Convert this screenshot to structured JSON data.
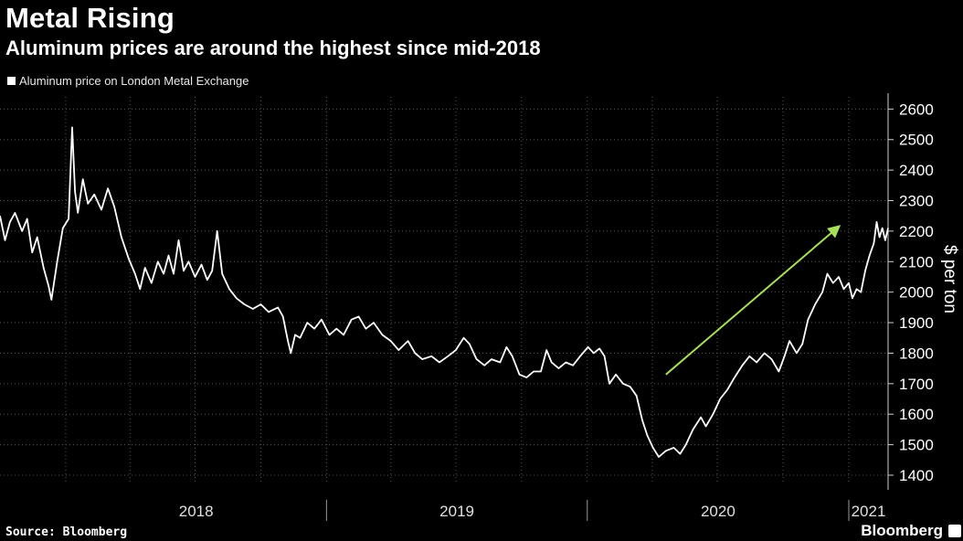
{
  "header": {
    "title": "Metal Rising",
    "subtitle": "Aluminum prices are around the highest since mid-2018"
  },
  "footer": {
    "source": "Source: Bloomberg",
    "brand": "Bloomberg"
  },
  "colors": {
    "background": "#000000",
    "line": "#ffffff",
    "annotation_arrow": "#a6e05a",
    "grid": "#555555"
  },
  "chart_data": {
    "type": "line",
    "title": "Metal Rising",
    "subtitle": "Aluminum prices are around the highest since mid-2018",
    "ylabel": "$ per ton",
    "y_axis_position": "right",
    "ylim": [
      1370,
      2640
    ],
    "yticks": [
      1400,
      1500,
      1600,
      1700,
      1800,
      1900,
      2000,
      2100,
      2200,
      2300,
      2400,
      2500,
      2600
    ],
    "xlim": [
      "2017-10-01",
      "2021-02-25"
    ],
    "x_tick_labels": [
      "2018",
      "2019",
      "2020",
      "2021"
    ],
    "grid": true,
    "legend": {
      "position": "top-left",
      "entries": [
        "Aluminum price on London Metal Exchange"
      ]
    },
    "series": [
      {
        "name": "Aluminum price on London Metal Exchange",
        "color": "#ffffff",
        "points": [
          [
            "2017-10-01",
            2250
          ],
          [
            "2017-10-08",
            2170
          ],
          [
            "2017-10-15",
            2230
          ],
          [
            "2017-10-22",
            2260
          ],
          [
            "2017-11-01",
            2200
          ],
          [
            "2017-11-08",
            2240
          ],
          [
            "2017-11-15",
            2130
          ],
          [
            "2017-11-22",
            2180
          ],
          [
            "2017-12-01",
            2080
          ],
          [
            "2017-12-08",
            2020
          ],
          [
            "2017-12-12",
            1975
          ],
          [
            "2017-12-20",
            2100
          ],
          [
            "2017-12-28",
            2210
          ],
          [
            "2018-01-05",
            2240
          ],
          [
            "2018-01-10",
            2540
          ],
          [
            "2018-01-14",
            2330
          ],
          [
            "2018-01-18",
            2260
          ],
          [
            "2018-01-25",
            2370
          ],
          [
            "2018-02-01",
            2290
          ],
          [
            "2018-02-10",
            2320
          ],
          [
            "2018-02-20",
            2270
          ],
          [
            "2018-03-01",
            2340
          ],
          [
            "2018-03-10",
            2280
          ],
          [
            "2018-03-20",
            2180
          ],
          [
            "2018-03-30",
            2110
          ],
          [
            "2018-04-08",
            2060
          ],
          [
            "2018-04-15",
            2010
          ],
          [
            "2018-04-22",
            2080
          ],
          [
            "2018-05-01",
            2030
          ],
          [
            "2018-05-10",
            2100
          ],
          [
            "2018-05-18",
            2060
          ],
          [
            "2018-05-25",
            2120
          ],
          [
            "2018-06-01",
            2060
          ],
          [
            "2018-06-08",
            2170
          ],
          [
            "2018-06-15",
            2070
          ],
          [
            "2018-06-22",
            2100
          ],
          [
            "2018-07-01",
            2050
          ],
          [
            "2018-07-10",
            2090
          ],
          [
            "2018-07-18",
            2040
          ],
          [
            "2018-07-25",
            2070
          ],
          [
            "2018-08-01",
            2200
          ],
          [
            "2018-08-08",
            2060
          ],
          [
            "2018-08-18",
            2010
          ],
          [
            "2018-08-28",
            1980
          ],
          [
            "2018-09-08",
            1960
          ],
          [
            "2018-09-20",
            1945
          ],
          [
            "2018-10-01",
            1960
          ],
          [
            "2018-10-12",
            1935
          ],
          [
            "2018-10-25",
            1950
          ],
          [
            "2018-11-01",
            1920
          ],
          [
            "2018-11-08",
            1840
          ],
          [
            "2018-11-12",
            1800
          ],
          [
            "2018-11-18",
            1860
          ],
          [
            "2018-11-25",
            1850
          ],
          [
            "2018-12-05",
            1900
          ],
          [
            "2018-12-15",
            1880
          ],
          [
            "2018-12-25",
            1910
          ],
          [
            "2019-01-05",
            1860
          ],
          [
            "2019-01-15",
            1880
          ],
          [
            "2019-01-25",
            1860
          ],
          [
            "2019-02-05",
            1910
          ],
          [
            "2019-02-15",
            1920
          ],
          [
            "2019-02-25",
            1880
          ],
          [
            "2019-03-08",
            1900
          ],
          [
            "2019-03-20",
            1860
          ],
          [
            "2019-04-01",
            1840
          ],
          [
            "2019-04-12",
            1810
          ],
          [
            "2019-04-25",
            1840
          ],
          [
            "2019-05-05",
            1800
          ],
          [
            "2019-05-15",
            1780
          ],
          [
            "2019-05-28",
            1790
          ],
          [
            "2019-06-08",
            1770
          ],
          [
            "2019-06-20",
            1790
          ],
          [
            "2019-07-01",
            1810
          ],
          [
            "2019-07-12",
            1850
          ],
          [
            "2019-07-20",
            1830
          ],
          [
            "2019-07-30",
            1780
          ],
          [
            "2019-08-10",
            1760
          ],
          [
            "2019-08-20",
            1780
          ],
          [
            "2019-09-01",
            1770
          ],
          [
            "2019-09-10",
            1820
          ],
          [
            "2019-09-18",
            1790
          ],
          [
            "2019-09-28",
            1730
          ],
          [
            "2019-10-08",
            1720
          ],
          [
            "2019-10-18",
            1740
          ],
          [
            "2019-10-28",
            1740
          ],
          [
            "2019-11-05",
            1810
          ],
          [
            "2019-11-12",
            1770
          ],
          [
            "2019-11-22",
            1750
          ],
          [
            "2019-12-02",
            1770
          ],
          [
            "2019-12-12",
            1760
          ],
          [
            "2019-12-22",
            1790
          ],
          [
            "2020-01-02",
            1820
          ],
          [
            "2020-01-10",
            1800
          ],
          [
            "2020-01-18",
            1815
          ],
          [
            "2020-01-25",
            1790
          ],
          [
            "2020-02-01",
            1700
          ],
          [
            "2020-02-10",
            1730
          ],
          [
            "2020-02-20",
            1700
          ],
          [
            "2020-03-01",
            1690
          ],
          [
            "2020-03-10",
            1660
          ],
          [
            "2020-03-18",
            1580
          ],
          [
            "2020-03-25",
            1530
          ],
          [
            "2020-04-02",
            1490
          ],
          [
            "2020-04-10",
            1460
          ],
          [
            "2020-04-20",
            1480
          ],
          [
            "2020-05-01",
            1490
          ],
          [
            "2020-05-10",
            1470
          ],
          [
            "2020-05-18",
            1500
          ],
          [
            "2020-05-28",
            1550
          ],
          [
            "2020-06-08",
            1590
          ],
          [
            "2020-06-15",
            1560
          ],
          [
            "2020-06-25",
            1600
          ],
          [
            "2020-07-05",
            1650
          ],
          [
            "2020-07-15",
            1680
          ],
          [
            "2020-07-25",
            1720
          ],
          [
            "2020-08-05",
            1760
          ],
          [
            "2020-08-15",
            1790
          ],
          [
            "2020-08-25",
            1770
          ],
          [
            "2020-09-05",
            1800
          ],
          [
            "2020-09-15",
            1780
          ],
          [
            "2020-09-25",
            1740
          ],
          [
            "2020-10-03",
            1790
          ],
          [
            "2020-10-10",
            1840
          ],
          [
            "2020-10-20",
            1800
          ],
          [
            "2020-10-28",
            1830
          ],
          [
            "2020-11-05",
            1910
          ],
          [
            "2020-11-15",
            1960
          ],
          [
            "2020-11-25",
            2000
          ],
          [
            "2020-12-02",
            2060
          ],
          [
            "2020-12-10",
            2030
          ],
          [
            "2020-12-18",
            2050
          ],
          [
            "2020-12-25",
            2010
          ],
          [
            "2021-01-01",
            2030
          ],
          [
            "2021-01-06",
            1980
          ],
          [
            "2021-01-12",
            2010
          ],
          [
            "2021-01-18",
            2000
          ],
          [
            "2021-01-24",
            2070
          ],
          [
            "2021-01-30",
            2120
          ],
          [
            "2021-02-05",
            2160
          ],
          [
            "2021-02-09",
            2230
          ],
          [
            "2021-02-13",
            2180
          ],
          [
            "2021-02-17",
            2210
          ],
          [
            "2021-02-21",
            2170
          ],
          [
            "2021-02-25",
            2210
          ]
        ]
      }
    ],
    "annotations": [
      {
        "type": "arrow",
        "color": "#a6e05a",
        "from": [
          "2020-04-20",
          1730
        ],
        "to": [
          "2020-12-18",
          2215
        ]
      }
    ]
  }
}
